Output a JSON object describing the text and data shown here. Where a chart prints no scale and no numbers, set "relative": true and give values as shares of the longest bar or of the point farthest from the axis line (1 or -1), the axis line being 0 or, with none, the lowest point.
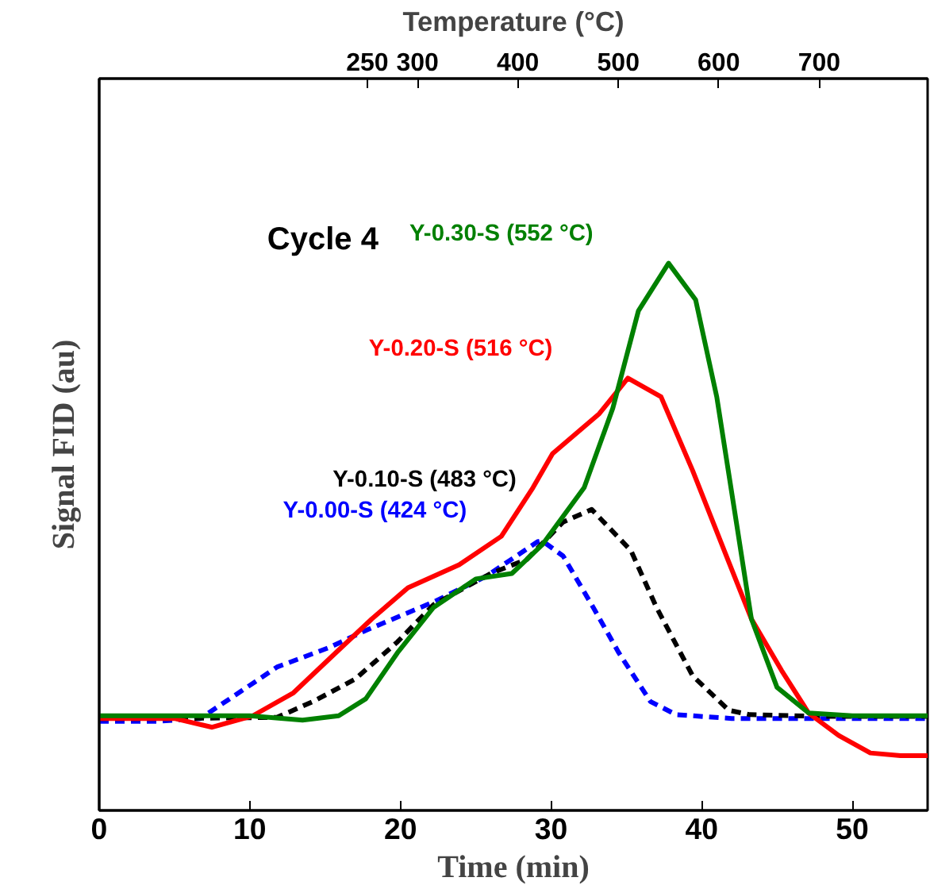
{
  "chart_data": {
    "type": "line",
    "title": "Cycle 4",
    "xlabel": "Time (min)",
    "ylabel": "Signal FID (au)",
    "x2label": "Temperature (°C)",
    "relative": true,
    "xlim": [
      0,
      55
    ],
    "xticks": [
      0,
      10,
      20,
      30,
      40,
      50
    ],
    "x2lim": [
      -17,
      808
    ],
    "x2ticks": [
      250,
      300,
      400,
      500,
      600,
      700
    ],
    "tick_labels": "x",
    "grid": false,
    "series": [
      {
        "name": "Y-0.00-S (424 °C)",
        "color": "#0000ff",
        "line_style": "dashed",
        "x": [
          0,
          4,
          6.7,
          9,
          11.8,
          15.3,
          17.7,
          22.2,
          25.7,
          29.1,
          29.4,
          30.8,
          32.8,
          34.5,
          36.6,
          38.3,
          42,
          48,
          55
        ],
        "values": [
          0.163,
          0.163,
          0.168,
          0.21,
          0.262,
          0.298,
          0.329,
          0.381,
          0.428,
          0.491,
          0.493,
          0.465,
          0.371,
          0.288,
          0.199,
          0.175,
          0.168,
          0.168,
          0.168
        ]
      },
      {
        "name": "Y-0.10-S (483 °C)",
        "color": "#000000",
        "line_style": "dashed",
        "x": [
          0,
          5,
          11.8,
          14.2,
          17,
          19.8,
          22.2,
          26,
          28.4,
          30.8,
          32.7,
          35.3,
          37,
          39.4,
          41.8,
          43.2,
          48,
          55
        ],
        "values": [
          0.168,
          0.168,
          0.17,
          0.199,
          0.24,
          0.308,
          0.376,
          0.433,
          0.459,
          0.527,
          0.55,
          0.475,
          0.371,
          0.246,
          0.183,
          0.175,
          0.172,
          0.172
        ]
      },
      {
        "name": "Y-0.20-S (516 °C)",
        "color": "#ff0000",
        "line_style": "solid",
        "x": [
          0,
          5,
          7.5,
          10.2,
          12.9,
          15.7,
          18.1,
          20.5,
          23.9,
          26.7,
          28.8,
          30.1,
          33.2,
          35.1,
          37.3,
          39.4,
          41.8,
          43.3,
          45.3,
          47.1,
          49.1,
          51.2,
          53.2,
          55
        ],
        "values": [
          0.168,
          0.168,
          0.152,
          0.173,
          0.215,
          0.288,
          0.35,
          0.407,
          0.449,
          0.501,
          0.59,
          0.652,
          0.725,
          0.79,
          0.756,
          0.621,
          0.454,
          0.35,
          0.256,
          0.178,
          0.137,
          0.105,
          0.1,
          0.1
        ]
      },
      {
        "name": "Y-0.30-S (552 °C)",
        "color": "#008000",
        "line_style": "solid",
        "x": [
          0,
          10,
          13.5,
          15.9,
          17.7,
          19.8,
          22.2,
          25,
          27.4,
          29.4,
          32.2,
          34.1,
          35.8,
          37.8,
          39.6,
          41,
          42.3,
          43.3,
          45,
          47.1,
          50,
          55
        ],
        "values": [
          0.173,
          0.173,
          0.165,
          0.173,
          0.204,
          0.288,
          0.371,
          0.423,
          0.433,
          0.485,
          0.59,
          0.735,
          0.913,
          1.0,
          0.933,
          0.756,
          0.527,
          0.35,
          0.225,
          0.178,
          0.173,
          0.173
        ]
      }
    ]
  }
}
